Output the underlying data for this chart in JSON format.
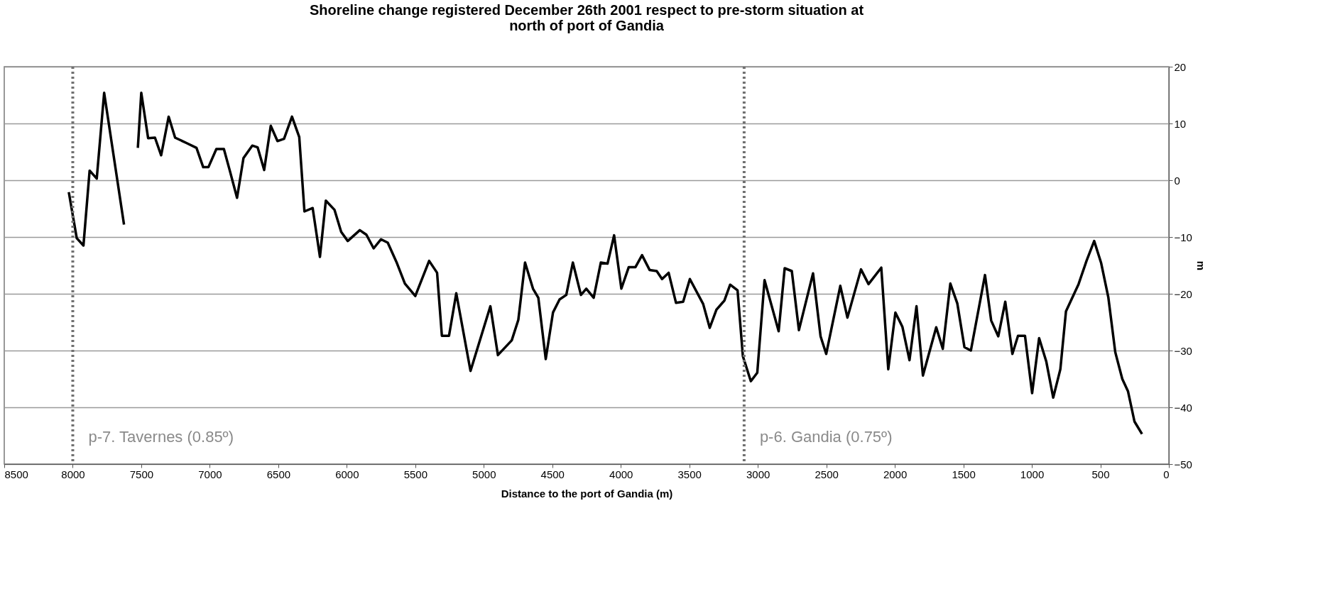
{
  "chart_data": {
    "type": "line",
    "title": "Shoreline change registered December 26th 2001 respect to pre-storm situation at\nnorth of port of Gandia",
    "xlabel": "Distance to the port of Gandia (m)",
    "ylabel": "m",
    "xlim": [
      8500,
      0
    ],
    "xticks": [
      8500,
      8000,
      7500,
      7000,
      6500,
      6000,
      5500,
      5000,
      4500,
      4000,
      3500,
      3000,
      2500,
      2000,
      1500,
      1000,
      500,
      0
    ],
    "ylim": [
      -50,
      20
    ],
    "yticks": [
      -50,
      -40,
      -30,
      -20,
      -10,
      0,
      10,
      20
    ],
    "grid": "y",
    "line_style": "solid",
    "marker": "none",
    "ref_lines": [
      {
        "axis": "x",
        "value": 8000,
        "label": "p-7. Tavernes (0.85º)",
        "color": "#707070",
        "line_style": "dotted"
      },
      {
        "axis": "x",
        "value": 3100,
        "label": "p-6. Gandia (0.75º)",
        "color": "#707070",
        "line_style": "dotted"
      }
    ],
    "series": [
      {
        "color": "#000000",
        "x": [
          8029,
          7971,
          7922,
          7877,
          7825,
          7771,
          7626,
          7575,
          7525,
          7500,
          7450,
          7400,
          7355,
          7300,
          7253,
          7165,
          7097,
          7048,
          7010,
          6952,
          6897,
          6855,
          6801,
          6754,
          6690,
          6651,
          6603,
          6555,
          6506,
          6458,
          6400,
          6347,
          6309,
          6249,
          6196,
          6153,
          6090,
          6041,
          5993,
          5905,
          5857,
          5804,
          5750,
          5701,
          5634,
          5576,
          5500,
          5399,
          5341,
          5306,
          5254,
          5201,
          5097,
          4952,
          4897,
          4796,
          4748,
          4699,
          4641,
          4602,
          4548,
          4495,
          4447,
          4398,
          4350,
          4291,
          4252,
          4198,
          4146,
          4097,
          4049,
          3996,
          3942,
          3893,
          3845,
          3790,
          3738,
          3699,
          3651,
          3597,
          3545,
          3496,
          3399,
          3351,
          3302,
          3244,
          3202,
          3148,
          3109,
          3051,
          3004,
          2951,
          2848,
          2804,
          2752,
          2700,
          2597,
          2542,
          2501,
          2398,
          2346,
          2247,
          2192,
          2099,
          2048,
          1996,
          1945,
          1893,
          1842,
          1795,
          1698,
          1650,
          1595,
          1544,
          1492,
          1445,
          1342,
          1297,
          1245,
          1194,
          1142,
          1101,
          1050,
          998,
          947,
          895,
          844,
          792,
          751,
          659,
          601,
          545,
          494,
          442,
          391,
          340,
          298,
          251,
          196
        ],
        "values": [
          -2.1,
          -10.2,
          -11.5,
          1.7,
          0.3,
          15.4,
          -7.8,
          null,
          5.7,
          15.4,
          7.4,
          7.5,
          4.4,
          11.2,
          7.5,
          6.5,
          5.7,
          2.3,
          2.3,
          5.5,
          5.5,
          1.8,
          -3.1,
          3.9,
          6.1,
          5.8,
          1.8,
          9.6,
          6.9,
          7.3,
          11.2,
          7.6,
          -5.5,
          -4.9,
          -13.5,
          -3.6,
          -5.2,
          -9.1,
          -10.7,
          -8.8,
          -9.6,
          -12.0,
          -10.4,
          -11.0,
          -14.6,
          -18.2,
          -20.4,
          -14.2,
          -16.3,
          -27.4,
          -27.4,
          -19.9,
          -33.6,
          -22.2,
          -30.8,
          -28.2,
          -24.6,
          -14.5,
          -19.1,
          -20.7,
          -31.5,
          -23.3,
          -21.0,
          -20.2,
          -14.5,
          -20.2,
          -19.1,
          -20.7,
          -14.5,
          -14.7,
          -9.7,
          -19.1,
          -15.3,
          -15.3,
          -13.2,
          -15.8,
          -16.0,
          -17.4,
          -16.3,
          -21.6,
          -21.4,
          -17.4,
          -21.8,
          -26.0,
          -22.8,
          -21.2,
          -18.4,
          -19.4,
          -31.0,
          -35.4,
          -33.9,
          -17.6,
          -26.6,
          -15.5,
          -16.0,
          -26.4,
          -16.4,
          -27.5,
          -30.6,
          -18.6,
          -24.2,
          -15.7,
          -18.3,
          -15.4,
          -33.3,
          -23.3,
          -25.8,
          -31.7,
          -22.2,
          -34.4,
          -25.9,
          -29.7,
          -18.2,
          -21.7,
          -29.4,
          -30.0,
          -16.7,
          -24.7,
          -27.5,
          -21.4,
          -30.6,
          -27.4,
          -27.4,
          -37.5,
          -27.8,
          -31.9,
          -38.3,
          -33.3,
          -23.1,
          -18.3,
          -14.2,
          -10.7,
          -14.6,
          -20.6,
          -30.3,
          -35.0,
          -37.2,
          -42.5,
          -44.7
        ]
      }
    ]
  }
}
